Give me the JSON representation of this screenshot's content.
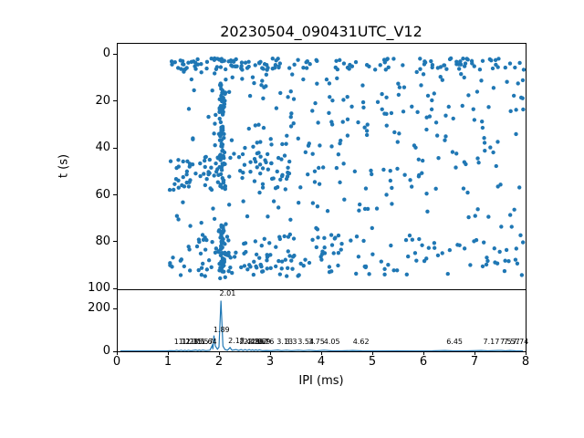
{
  "figure": {
    "title": "20230504_090431UTC_V12",
    "background": "#ffffff",
    "accent_color": "#1f77b4",
    "axis_color": "#000000"
  },
  "chart_data": [
    {
      "type": "scatter",
      "title": "20230504_090431UTC_V12",
      "xlabel": "IPI (ms)",
      "ylabel": "t (s)",
      "xlim": [
        0,
        8
      ],
      "ylim_inverted": [
        -4.7,
        100.6
      ],
      "yticks": [
        0,
        20,
        40,
        60,
        80,
        100
      ],
      "grid": false,
      "marker_color": "#1f77b4",
      "marker_radius_px": 2.2,
      "seed": 42,
      "clusters": [
        {
          "name": "top-band-left",
          "x": [
            1.0,
            3.2
          ],
          "t": [
            1.5,
            6.5
          ],
          "n": 75
        },
        {
          "name": "top-band-right",
          "x": [
            3.2,
            8.0
          ],
          "t": [
            1.5,
            6.5
          ],
          "n": 75
        },
        {
          "name": "upper-sparse-row",
          "x": [
            1.0,
            8.0
          ],
          "t": [
            7,
            14
          ],
          "n": 35
        },
        {
          "name": "mid-scatter",
          "x": [
            1.0,
            8.0
          ],
          "t": [
            14,
            42
          ],
          "n": 120
        },
        {
          "name": "mid-left-band",
          "x": [
            1.0,
            3.4
          ],
          "t": [
            42,
            58
          ],
          "n": 95
        },
        {
          "name": "mid-right-sparse",
          "x": [
            3.4,
            8.0
          ],
          "t": [
            42,
            58
          ],
          "n": 42
        },
        {
          "name": "gap-sparse",
          "x": [
            1.0,
            8.0
          ],
          "t": [
            59,
            76
          ],
          "n": 42
        },
        {
          "name": "bottom-band-left",
          "x": [
            1.0,
            4.4
          ],
          "t": [
            77,
            95
          ],
          "n": 130
        },
        {
          "name": "bottom-band-right",
          "x": [
            4.4,
            8.0
          ],
          "t": [
            77,
            95
          ],
          "n": 60
        }
      ],
      "streaks": [
        {
          "name": "vertical-streak-upper",
          "x_center": 2.03,
          "x_spread": 0.07,
          "t": [
            12,
            58
          ],
          "n": 80
        },
        {
          "name": "vertical-streak-lower",
          "x_center": 2.04,
          "x_spread": 0.06,
          "t": [
            72,
            96
          ],
          "n": 50
        }
      ]
    },
    {
      "type": "line",
      "xlabel": "IPI (ms)",
      "ylabel": "",
      "xlim": [
        0,
        8
      ],
      "ylim": [
        0,
        290
      ],
      "xticks": [
        0,
        1,
        2,
        3,
        4,
        5,
        6,
        7,
        8
      ],
      "yticks": [
        0,
        200
      ],
      "grid": false,
      "line_color": "#1f77b4",
      "points": [
        [
          0,
          1.5
        ],
        [
          0.9,
          1.5
        ],
        [
          1.0,
          3
        ],
        [
          1.08,
          2
        ],
        [
          1.12,
          5
        ],
        [
          1.16,
          2
        ],
        [
          1.21,
          5
        ],
        [
          1.25,
          2
        ],
        [
          1.28,
          5
        ],
        [
          1.32,
          2
        ],
        [
          1.35,
          5
        ],
        [
          1.4,
          2
        ],
        [
          1.5,
          6
        ],
        [
          1.54,
          3
        ],
        [
          1.57,
          6
        ],
        [
          1.6,
          3
        ],
        [
          1.64,
          6
        ],
        [
          1.7,
          3
        ],
        [
          1.78,
          5
        ],
        [
          1.83,
          30
        ],
        [
          1.84,
          10
        ],
        [
          1.86,
          75
        ],
        [
          1.89,
          25
        ],
        [
          1.93,
          10
        ],
        [
          1.96,
          20
        ],
        [
          2.0,
          240
        ],
        [
          2.04,
          25
        ],
        [
          2.08,
          8
        ],
        [
          2.13,
          5
        ],
        [
          2.18,
          18
        ],
        [
          2.22,
          5
        ],
        [
          2.3,
          8
        ],
        [
          2.35,
          4
        ],
        [
          2.4,
          8
        ],
        [
          2.44,
          4
        ],
        [
          2.48,
          8
        ],
        [
          2.52,
          4
        ],
        [
          2.56,
          8
        ],
        [
          2.6,
          4
        ],
        [
          2.62,
          7
        ],
        [
          2.66,
          4
        ],
        [
          2.69,
          7
        ],
        [
          2.73,
          4
        ],
        [
          2.76,
          7
        ],
        [
          2.82,
          3
        ],
        [
          2.9,
          4
        ],
        [
          3.0,
          3
        ],
        [
          3.13,
          6
        ],
        [
          3.2,
          3
        ],
        [
          3.3,
          5
        ],
        [
          3.4,
          3
        ],
        [
          3.54,
          5
        ],
        [
          3.64,
          3
        ],
        [
          3.75,
          5
        ],
        [
          3.9,
          2
        ],
        [
          4.05,
          5
        ],
        [
          4.2,
          2
        ],
        [
          4.4,
          2
        ],
        [
          4.62,
          4
        ],
        [
          4.8,
          2
        ],
        [
          5.1,
          1.5
        ],
        [
          5.5,
          2
        ],
        [
          5.9,
          1.5
        ],
        [
          6.2,
          2
        ],
        [
          6.45,
          4
        ],
        [
          6.6,
          2
        ],
        [
          6.9,
          2
        ],
        [
          7.17,
          4
        ],
        [
          7.3,
          2
        ],
        [
          7.5,
          4
        ],
        [
          7.57,
          4
        ],
        [
          7.65,
          2
        ],
        [
          7.74,
          4
        ],
        [
          7.85,
          2
        ],
        [
          8,
          1.5
        ]
      ],
      "peak_labels": [
        {
          "x": 1.12,
          "y": 26,
          "label": "1.12"
        },
        {
          "x": 1.21,
          "y": 26,
          "label": "1.21"
        },
        {
          "x": 1.28,
          "y": 26,
          "label": "1.28"
        },
        {
          "x": 1.35,
          "y": 26,
          "label": "1.35"
        },
        {
          "x": 1.5,
          "y": 26,
          "label": "1.5"
        },
        {
          "x": 1.57,
          "y": 26,
          "label": "1.57"
        },
        {
          "x": 1.64,
          "y": 26,
          "label": "1.64"
        },
        {
          "x": 1.89,
          "y": 80,
          "label": "1.89"
        },
        {
          "x": 2.01,
          "y": 250,
          "label": "2.01"
        },
        {
          "x": 2.18,
          "y": 30,
          "label": "2.18"
        },
        {
          "x": 2.4,
          "y": 26,
          "label": "2.4"
        },
        {
          "x": 2.48,
          "y": 26,
          "label": "2.48"
        },
        {
          "x": 2.56,
          "y": 26,
          "label": "2.56"
        },
        {
          "x": 2.62,
          "y": 26,
          "label": "2.62"
        },
        {
          "x": 2.69,
          "y": 26,
          "label": "2.69"
        },
        {
          "x": 2.76,
          "y": 26,
          "label": "2.76"
        },
        {
          "x": 3.13,
          "y": 26,
          "label": "3.13"
        },
        {
          "x": 3.3,
          "y": 26,
          "label": "3.3"
        },
        {
          "x": 3.54,
          "y": 26,
          "label": "3.54"
        },
        {
          "x": 3.75,
          "y": 26,
          "label": "3.75"
        },
        {
          "x": 4.05,
          "y": 26,
          "label": "4.05"
        },
        {
          "x": 4.62,
          "y": 26,
          "label": "4.62"
        },
        {
          "x": 6.45,
          "y": 26,
          "label": "6.45"
        },
        {
          "x": 7.17,
          "y": 26,
          "label": "7.17"
        },
        {
          "x": 7.5,
          "y": 26,
          "label": "7.5"
        },
        {
          "x": 7.57,
          "y": 26,
          "label": "7.57"
        },
        {
          "x": 7.74,
          "y": 26,
          "label": "7.74"
        }
      ]
    }
  ]
}
